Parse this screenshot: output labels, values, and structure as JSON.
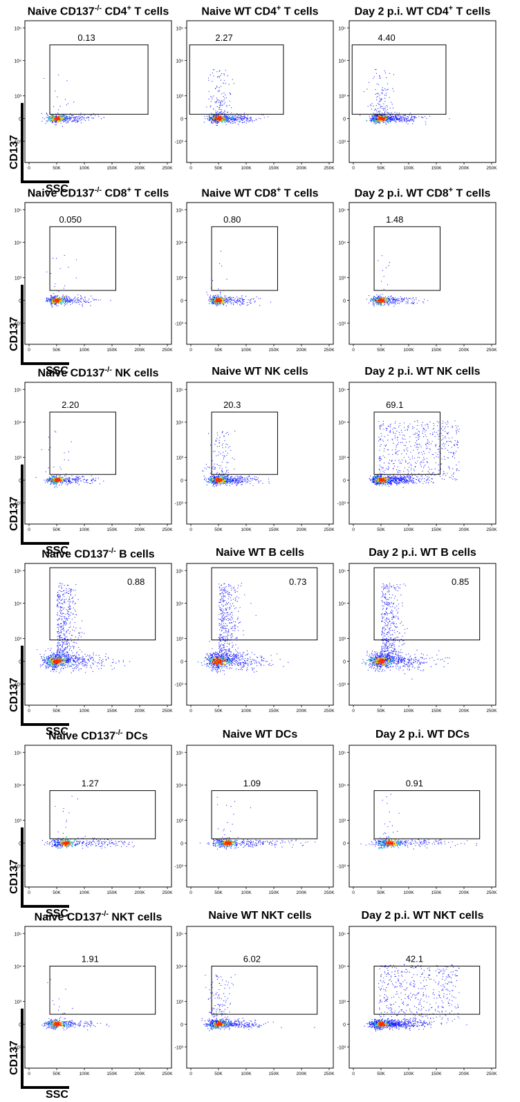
{
  "figure": {
    "x_axis_label": "SSC",
    "y_axis_label": "CD137",
    "x_ticks": [
      "0",
      "50K",
      "100K",
      "150K",
      "200K",
      "250K"
    ],
    "y_ticks": [
      "10⁵",
      "10⁴",
      "10³",
      "0",
      "-10³"
    ]
  },
  "colors": {
    "dots": "#1a1aff",
    "density_high": "#ff2a00",
    "density_mid": "#ffd400",
    "density_low": "#22c8c8",
    "gate": "#000000"
  },
  "chart_data": [
    {
      "type": "scatter",
      "row": 1,
      "title": {
        "main": "Naive CD137",
        "sup": "-/-",
        "tail": " CD4",
        "sup2": "+",
        "end": " T cells"
      },
      "gate_percent": "0.13",
      "xlim": [
        0,
        260000
      ],
      "density": "low"
    },
    {
      "type": "scatter",
      "row": 1,
      "title": {
        "main": "Naive WT CD4",
        "sup": "+",
        "tail": " T cells",
        "sup2": "",
        "end": ""
      },
      "gate_percent": "2.27",
      "xlim": [
        0,
        260000
      ],
      "density": "mid"
    },
    {
      "type": "scatter",
      "row": 1,
      "title": {
        "main": "Day 2 p.i. WT CD4",
        "sup": "+",
        "tail": " T cells",
        "sup2": "",
        "end": ""
      },
      "gate_percent": "4.40",
      "xlim": [
        0,
        260000
      ],
      "density": "mid"
    },
    {
      "type": "scatter",
      "row": 2,
      "title": {
        "main": "Naive CD137",
        "sup": "-/-",
        "tail": " CD8",
        "sup2": "+",
        "end": " T cells"
      },
      "gate_percent": "0.050",
      "xlim": [
        0,
        260000
      ],
      "density": "low"
    },
    {
      "type": "scatter",
      "row": 2,
      "title": {
        "main": "Naive WT CD8",
        "sup": "+",
        "tail": " T cells",
        "sup2": "",
        "end": ""
      },
      "gate_percent": "0.80",
      "xlim": [
        0,
        260000
      ],
      "density": "low"
    },
    {
      "type": "scatter",
      "row": 2,
      "title": {
        "main": "Day 2 p.i. WT CD8",
        "sup": "+",
        "tail": " T cells",
        "sup2": "",
        "end": ""
      },
      "gate_percent": "1.48",
      "xlim": [
        0,
        260000
      ],
      "density": "low"
    },
    {
      "type": "scatter",
      "row": 3,
      "title": {
        "main": "Naive CD137",
        "sup": "-/-",
        "tail": " NK cells",
        "sup2": "",
        "end": ""
      },
      "gate_percent": "2.20",
      "xlim": [
        0,
        260000
      ],
      "density": "low"
    },
    {
      "type": "scatter",
      "row": 3,
      "title": {
        "main": "Naive WT NK cells",
        "sup": "",
        "tail": "",
        "sup2": "",
        "end": ""
      },
      "gate_percent": "20.3",
      "xlim": [
        0,
        260000
      ],
      "density": "mid"
    },
    {
      "type": "scatter",
      "row": 3,
      "title": {
        "main": "Day 2 p.i. WT NK cells",
        "sup": "",
        "tail": "",
        "sup2": "",
        "end": ""
      },
      "gate_percent": "69.1",
      "xlim": [
        0,
        260000
      ],
      "density": "high"
    },
    {
      "type": "scatter",
      "row": 4,
      "title": {
        "main": "Naive CD137",
        "sup": "-/-",
        "tail": " B cells",
        "sup2": "",
        "end": ""
      },
      "gate_percent": "0.88",
      "xlim": [
        0,
        260000
      ],
      "density": "mid"
    },
    {
      "type": "scatter",
      "row": 4,
      "title": {
        "main": "Naive WT B cells",
        "sup": "",
        "tail": "",
        "sup2": "",
        "end": ""
      },
      "gate_percent": "0.73",
      "xlim": [
        0,
        260000
      ],
      "density": "mid"
    },
    {
      "type": "scatter",
      "row": 4,
      "title": {
        "main": "Day 2 p.i. WT B cells",
        "sup": "",
        "tail": "",
        "sup2": "",
        "end": ""
      },
      "gate_percent": "0.85",
      "xlim": [
        0,
        260000
      ],
      "density": "mid"
    },
    {
      "type": "scatter",
      "row": 5,
      "title": {
        "main": "Naive CD137",
        "sup": "-/-",
        "tail": " DCs",
        "sup2": "",
        "end": ""
      },
      "gate_percent": "1.27",
      "xlim": [
        0,
        260000
      ],
      "density": "low"
    },
    {
      "type": "scatter",
      "row": 5,
      "title": {
        "main": "Naive WT DCs",
        "sup": "",
        "tail": "",
        "sup2": "",
        "end": ""
      },
      "gate_percent": "1.09",
      "xlim": [
        0,
        260000
      ],
      "density": "low"
    },
    {
      "type": "scatter",
      "row": 5,
      "title": {
        "main": "Day 2 p.i. WT DCs",
        "sup": "",
        "tail": "",
        "sup2": "",
        "end": ""
      },
      "gate_percent": "0.91",
      "xlim": [
        0,
        260000
      ],
      "density": "low"
    },
    {
      "type": "scatter",
      "row": 6,
      "title": {
        "main": "Naive CD137",
        "sup": "-/-",
        "tail": " NKT cells",
        "sup2": "",
        "end": ""
      },
      "gate_percent": "1.91",
      "xlim": [
        0,
        260000
      ],
      "density": "low"
    },
    {
      "type": "scatter",
      "row": 6,
      "title": {
        "main": "Naive WT NKT cells",
        "sup": "",
        "tail": "",
        "sup2": "",
        "end": ""
      },
      "gate_percent": "6.02",
      "xlim": [
        0,
        260000
      ],
      "density": "mid"
    },
    {
      "type": "scatter",
      "row": 6,
      "title": {
        "main": "Day 2 p.i. WT NKT cells",
        "sup": "",
        "tail": "",
        "sup2": "",
        "end": ""
      },
      "gate_percent": "42.1",
      "xlim": [
        0,
        260000
      ],
      "density": "high"
    }
  ]
}
